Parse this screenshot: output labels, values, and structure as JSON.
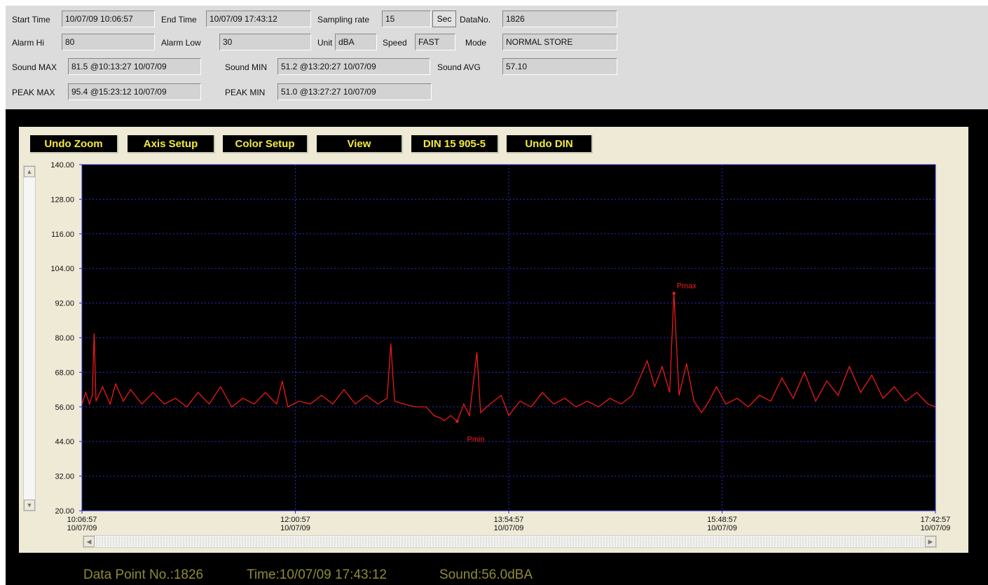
{
  "info": {
    "start_time_label": "Start Time",
    "start_time": "10/07/09 10:06:57",
    "end_time_label": "End Time",
    "end_time": "10/07/09 17:43:12",
    "sampling_rate_label": "Sampling rate",
    "sampling_rate": "15",
    "sampling_unit": "Sec",
    "data_no_label": "DataNo.",
    "data_no": "1826",
    "alarm_hi_label": "Alarm Hi",
    "alarm_hi": "80",
    "alarm_low_label": "Alarm Low",
    "alarm_low": "30",
    "unit_label": "Unit",
    "unit": "dBA",
    "speed_label": "Speed",
    "speed": "FAST",
    "mode_label": "Mode",
    "mode": "NORMAL STORE",
    "sound_max_label": "Sound MAX",
    "sound_max": "81.5 @10:13:27 10/07/09",
    "sound_min_label": "Sound MIN",
    "sound_min": "51.2 @13:20:27 10/07/09",
    "sound_avg_label": "Sound AVG",
    "sound_avg": "57.10",
    "peak_max_label": "PEAK MAX",
    "peak_max": "95.4 @15:23:12 10/07/09",
    "peak_min_label": "PEAK MIN",
    "peak_min": "51.0 @13:27:27 10/07/09"
  },
  "toolbar": {
    "undo_zoom": "Undo Zoom",
    "axis_setup": "Axis Setup",
    "color_setup": "Color Setup",
    "view": "View",
    "din": "DIN 15 905-5",
    "undo_din": "Undo DIN"
  },
  "status": {
    "data_point": "Data Point No.:1826",
    "time": "Time:10/07/09 17:43:12",
    "sound": "Sound:56.0dBA"
  },
  "colors": {
    "series": "#ff1a1a",
    "grid": "#2a2ad0",
    "plot_bg": "#000000",
    "button_text": "#f2ea3c",
    "status_text": "#8f8a38"
  },
  "chart_data": {
    "type": "line",
    "ylim": [
      20,
      140
    ],
    "y_ticks": [
      "140.00",
      "128.00",
      "116.00",
      "104.00",
      "92.00",
      "80.00",
      "68.00",
      "56.00",
      "44.00",
      "32.00",
      "20.00"
    ],
    "x_ticks": [
      {
        "time": "10:06:57",
        "date": "10/07/09"
      },
      {
        "time": "12:00:57",
        "date": "10/07/09"
      },
      {
        "time": "13:54:57",
        "date": "10/07/09"
      },
      {
        "time": "15:48:57",
        "date": "10/07/09"
      },
      {
        "time": "17:42:57",
        "date": "10/07/09"
      }
    ],
    "x_start": "10:06:57",
    "x_end": "17:42:57",
    "grid": true,
    "baseline": 56,
    "annotations": [
      {
        "label": "Pmax",
        "time": "15:23:12",
        "value": 95.4
      },
      {
        "label": "Pmin",
        "time": "13:27:27",
        "value": 51.0
      }
    ],
    "series": [
      {
        "points": [
          [
            "10:06:57",
            57
          ],
          [
            "10:08:57",
            61
          ],
          [
            "10:10:57",
            57
          ],
          [
            "10:12:27",
            60
          ],
          [
            "10:13:27",
            81.5
          ],
          [
            "10:14:27",
            58
          ],
          [
            "10:17:57",
            63
          ],
          [
            "10:21:57",
            57
          ],
          [
            "10:24:57",
            64
          ],
          [
            "10:28:57",
            58
          ],
          [
            "10:32:57",
            62
          ],
          [
            "10:38:57",
            57
          ],
          [
            "10:44:57",
            61
          ],
          [
            "10:50:57",
            57
          ],
          [
            "10:56:57",
            59
          ],
          [
            "11:02:57",
            56
          ],
          [
            "11:08:57",
            61
          ],
          [
            "11:14:57",
            57
          ],
          [
            "11:20:57",
            63
          ],
          [
            "11:26:57",
            56
          ],
          [
            "11:32:57",
            59
          ],
          [
            "11:38:57",
            57
          ],
          [
            "11:44:57",
            61
          ],
          [
            "11:50:57",
            57
          ],
          [
            "11:53:57",
            65
          ],
          [
            "11:56:57",
            56
          ],
          [
            "12:02:57",
            58
          ],
          [
            "12:08:57",
            57
          ],
          [
            "12:14:57",
            60
          ],
          [
            "12:20:57",
            57
          ],
          [
            "12:26:57",
            62
          ],
          [
            "12:32:57",
            57
          ],
          [
            "12:38:57",
            60
          ],
          [
            "12:44:57",
            57
          ],
          [
            "12:49:57",
            59
          ],
          [
            "12:51:57",
            78
          ],
          [
            "12:53:57",
            58
          ],
          [
            "12:58:57",
            57
          ],
          [
            "13:04:57",
            56
          ],
          [
            "13:10:57",
            56
          ],
          [
            "13:14:57",
            53
          ],
          [
            "13:18:57",
            52
          ],
          [
            "13:20:27",
            51.2
          ],
          [
            "13:23:57",
            53
          ],
          [
            "13:27:27",
            51
          ],
          [
            "13:30:57",
            57
          ],
          [
            "13:33:57",
            53
          ],
          [
            "13:37:57",
            75
          ],
          [
            "13:39:57",
            54
          ],
          [
            "13:44:57",
            57
          ],
          [
            "13:50:57",
            60
          ],
          [
            "13:54:57",
            53
          ],
          [
            "14:00:57",
            58
          ],
          [
            "14:06:57",
            56
          ],
          [
            "14:12:57",
            61
          ],
          [
            "14:18:57",
            57
          ],
          [
            "14:24:57",
            59
          ],
          [
            "14:30:57",
            56
          ],
          [
            "14:36:57",
            58
          ],
          [
            "14:42:57",
            56
          ],
          [
            "14:48:57",
            59
          ],
          [
            "14:54:57",
            57
          ],
          [
            "15:00:57",
            60
          ],
          [
            "15:04:57",
            66
          ],
          [
            "15:08:57",
            72
          ],
          [
            "15:12:57",
            63
          ],
          [
            "15:16:57",
            70
          ],
          [
            "15:20:57",
            61
          ],
          [
            "15:23:12",
            95.4
          ],
          [
            "15:25:57",
            60
          ],
          [
            "15:29:57",
            71
          ],
          [
            "15:33:57",
            58
          ],
          [
            "15:37:57",
            54
          ],
          [
            "15:41:57",
            58
          ],
          [
            "15:45:57",
            63
          ],
          [
            "15:50:57",
            57
          ],
          [
            "15:56:57",
            59
          ],
          [
            "16:02:57",
            56
          ],
          [
            "16:08:57",
            60
          ],
          [
            "16:14:57",
            58
          ],
          [
            "16:20:57",
            66
          ],
          [
            "16:26:57",
            59
          ],
          [
            "16:32:57",
            68
          ],
          [
            "16:38:57",
            58
          ],
          [
            "16:44:57",
            65
          ],
          [
            "16:50:57",
            60
          ],
          [
            "16:56:57",
            70
          ],
          [
            "17:02:57",
            61
          ],
          [
            "17:08:57",
            67
          ],
          [
            "17:14:57",
            59
          ],
          [
            "17:20:57",
            63
          ],
          [
            "17:26:57",
            58
          ],
          [
            "17:32:57",
            61
          ],
          [
            "17:38:57",
            57
          ],
          [
            "17:42:57",
            56
          ]
        ]
      }
    ]
  }
}
